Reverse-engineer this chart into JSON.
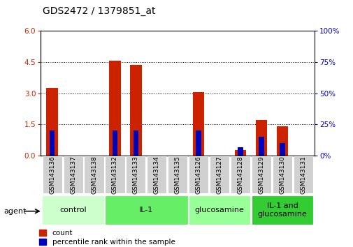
{
  "title": "GDS2472 / 1379851_at",
  "samples": [
    "GSM143136",
    "GSM143137",
    "GSM143138",
    "GSM143132",
    "GSM143133",
    "GSM143134",
    "GSM143135",
    "GSM143126",
    "GSM143127",
    "GSM143128",
    "GSM143129",
    "GSM143130",
    "GSM143131"
  ],
  "count_values": [
    3.25,
    0,
    0,
    4.55,
    4.35,
    0,
    0,
    3.05,
    0,
    0.27,
    1.7,
    1.4,
    0
  ],
  "percentile_values": [
    20,
    0,
    0,
    20,
    20,
    0,
    0,
    20,
    0,
    7,
    15,
    10,
    0
  ],
  "groups": [
    {
      "label": "control",
      "start": 0,
      "end": 3,
      "color": "#ccffcc"
    },
    {
      "label": "IL-1",
      "start": 3,
      "end": 7,
      "color": "#66ee66"
    },
    {
      "label": "glucosamine",
      "start": 7,
      "end": 10,
      "color": "#99ff99"
    },
    {
      "label": "IL-1 and\nglucosamine",
      "start": 10,
      "end": 13,
      "color": "#33cc33"
    }
  ],
  "ylim_left": [
    0,
    6
  ],
  "ylim_right": [
    0,
    100
  ],
  "yticks_left": [
    0,
    1.5,
    3.0,
    4.5,
    6
  ],
  "yticks_right": [
    0,
    25,
    50,
    75,
    100
  ],
  "bar_color_red": "#cc2200",
  "bar_color_blue": "#0000bb",
  "bar_width": 0.55,
  "blue_bar_width": 0.25,
  "legend_labels": [
    "count",
    "percentile rank within the sample"
  ],
  "agent_label": "agent"
}
